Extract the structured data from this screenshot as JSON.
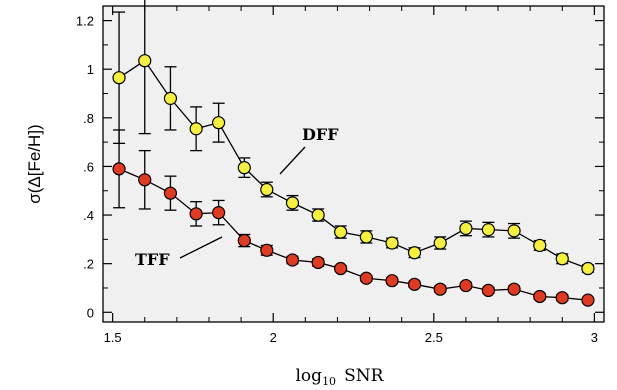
{
  "chart_data": {
    "type": "scatter",
    "xlabel": "log10 SNR",
    "xlabel_base": "log",
    "xlabel_sub": "10",
    "xlabel_rest": "SNR",
    "ylabel": "σ(Δ[Fe/H])",
    "xlim": [
      1.47,
      3.03
    ],
    "ylim": [
      -0.04,
      1.26
    ],
    "xticks": [
      1.5,
      2,
      2.5,
      3
    ],
    "xtick_labels": [
      "1.5",
      "2",
      "2.5",
      "3"
    ],
    "yticks": [
      0,
      0.2,
      0.4,
      0.6,
      0.8,
      1,
      1.2
    ],
    "ytick_labels": [
      "0",
      ".2",
      ".4",
      ".6",
      ".8",
      "1",
      "1.2"
    ],
    "grid": false,
    "background": "#f0f0f0",
    "series": [
      {
        "name": "DFF",
        "color": "#f5f03a",
        "points": [
          {
            "x": 1.52,
            "y": 0.965,
            "err": 0.27
          },
          {
            "x": 1.6,
            "y": 1.035,
            "err": 0.3
          },
          {
            "x": 1.68,
            "y": 0.88,
            "err": 0.13
          },
          {
            "x": 1.76,
            "y": 0.755,
            "err": 0.09
          },
          {
            "x": 1.83,
            "y": 0.78,
            "err": 0.08
          },
          {
            "x": 1.91,
            "y": 0.595,
            "err": 0.04
          },
          {
            "x": 1.98,
            "y": 0.505,
            "err": 0.03
          },
          {
            "x": 2.06,
            "y": 0.45,
            "err": 0.03
          },
          {
            "x": 2.14,
            "y": 0.4,
            "err": 0.025
          },
          {
            "x": 2.21,
            "y": 0.33,
            "err": 0.025
          },
          {
            "x": 2.29,
            "y": 0.31,
            "err": 0.025
          },
          {
            "x": 2.37,
            "y": 0.285,
            "err": 0.02
          },
          {
            "x": 2.44,
            "y": 0.245,
            "err": 0.02
          },
          {
            "x": 2.52,
            "y": 0.285,
            "err": 0.025
          },
          {
            "x": 2.6,
            "y": 0.345,
            "err": 0.03
          },
          {
            "x": 2.67,
            "y": 0.34,
            "err": 0.03
          },
          {
            "x": 2.75,
            "y": 0.335,
            "err": 0.03
          },
          {
            "x": 2.83,
            "y": 0.275,
            "err": 0.02
          },
          {
            "x": 2.9,
            "y": 0.22,
            "err": 0.02
          },
          {
            "x": 2.98,
            "y": 0.18,
            "err": 0.015
          }
        ]
      },
      {
        "name": "TFF",
        "color": "#e23a20",
        "points": [
          {
            "x": 1.52,
            "y": 0.59,
            "err": 0.16
          },
          {
            "x": 1.6,
            "y": 0.545,
            "err": 0.12
          },
          {
            "x": 1.68,
            "y": 0.49,
            "err": 0.07
          },
          {
            "x": 1.76,
            "y": 0.405,
            "err": 0.05
          },
          {
            "x": 1.83,
            "y": 0.41,
            "err": 0.05
          },
          {
            "x": 1.91,
            "y": 0.295,
            "err": 0.025
          },
          {
            "x": 1.98,
            "y": 0.255,
            "err": 0.02
          },
          {
            "x": 2.06,
            "y": 0.215,
            "err": 0.015
          },
          {
            "x": 2.14,
            "y": 0.205,
            "err": 0.015
          },
          {
            "x": 2.21,
            "y": 0.18,
            "err": 0.012
          },
          {
            "x": 2.29,
            "y": 0.14,
            "err": 0.012
          },
          {
            "x": 2.37,
            "y": 0.13,
            "err": 0.012
          },
          {
            "x": 2.44,
            "y": 0.115,
            "err": 0.012
          },
          {
            "x": 2.52,
            "y": 0.095,
            "err": 0.012
          },
          {
            "x": 2.6,
            "y": 0.11,
            "err": 0.012
          },
          {
            "x": 2.67,
            "y": 0.09,
            "err": 0.012
          },
          {
            "x": 2.75,
            "y": 0.095,
            "err": 0.012
          },
          {
            "x": 2.83,
            "y": 0.065,
            "err": 0.012
          },
          {
            "x": 2.9,
            "y": 0.06,
            "err": 0.012
          },
          {
            "x": 2.98,
            "y": 0.05,
            "err": 0.01
          }
        ]
      }
    ],
    "annotations": [
      {
        "text": "DFF",
        "series": "DFF"
      },
      {
        "text": "TFF",
        "series": "TFF"
      }
    ]
  }
}
